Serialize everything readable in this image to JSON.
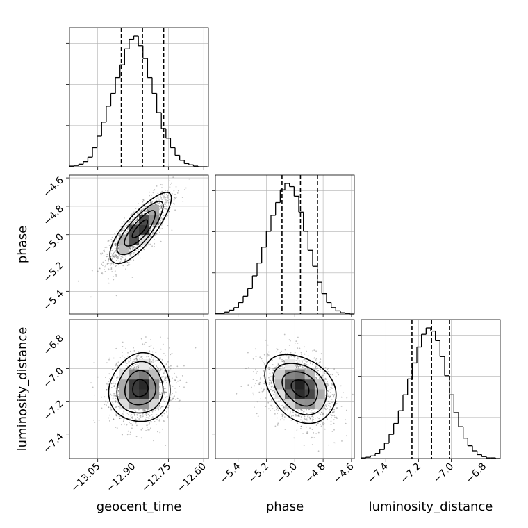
{
  "chart_data": {
    "type": "corner",
    "grid": true,
    "parameters": [
      {
        "name": "geocent_time",
        "label": "geocent_time",
        "range": [
          -13.17,
          -12.58
        ],
        "ticks": [
          -13.05,
          -12.9,
          -12.75,
          -12.6
        ],
        "tick_labels": [
          "−13.05",
          "−12.90",
          "−12.75",
          "−12.60"
        ],
        "quantiles": [
          -12.95,
          -12.86,
          -12.77
        ],
        "histogram": {
          "bin_edges": [
            -13.17,
            -13.1505,
            -13.131,
            -13.1115,
            -13.092,
            -13.0725,
            -13.053,
            -13.0335,
            -13.014,
            -12.9945,
            -12.975,
            -12.9555,
            -12.936,
            -12.9165,
            -12.897,
            -12.8775,
            -12.858,
            -12.8385,
            -12.819,
            -12.7995,
            -12.78,
            -12.7605,
            -12.741,
            -12.7215,
            -12.702,
            -12.6825,
            -12.663,
            -12.6435,
            -12.624,
            -12.6045,
            -12.585
          ],
          "counts": [
            1,
            2,
            4,
            8,
            15,
            30,
            48,
            70,
            95,
            115,
            140,
            160,
            185,
            200,
            205,
            190,
            170,
            140,
            115,
            85,
            60,
            45,
            30,
            18,
            10,
            5,
            3,
            1,
            0,
            0
          ]
        }
      },
      {
        "name": "phase",
        "label": "phase",
        "range": [
          -5.56,
          -4.58
        ],
        "ticks": [
          -5.4,
          -5.2,
          -5.0,
          -4.8,
          -4.6
        ],
        "tick_labels": [
          "−5.4",
          "−5.2",
          "−5.0",
          "−4.8",
          "−4.6"
        ],
        "quantiles": [
          -5.09,
          -4.96,
          -4.84
        ],
        "histogram": {
          "bin_edges": [
            -5.56,
            -5.5273,
            -5.4947,
            -5.462,
            -5.4293,
            -5.3967,
            -5.364,
            -5.3313,
            -5.2987,
            -5.266,
            -5.2333,
            -5.2007,
            -5.168,
            -5.1353,
            -5.1027,
            -5.07,
            -5.0373,
            -5.0047,
            -4.972,
            -4.9393,
            -4.9067,
            -4.874,
            -4.8413,
            -4.8087,
            -4.776,
            -4.7433,
            -4.7107,
            -4.678,
            -4.6453,
            -4.6127,
            -4.58
          ],
          "counts": [
            1,
            1,
            3,
            6,
            10,
            18,
            28,
            40,
            60,
            80,
            105,
            130,
            155,
            175,
            195,
            205,
            200,
            185,
            160,
            130,
            100,
            75,
            50,
            32,
            18,
            10,
            5,
            2,
            1,
            0
          ]
        }
      },
      {
        "name": "luminosity_distance",
        "label": "luminosity_distance",
        "range": [
          -7.55,
          -6.7
        ],
        "ticks": [
          -7.4,
          -7.2,
          -7.0,
          -6.8
        ],
        "tick_labels": [
          "−7.4",
          "−7.2",
          "−7.0",
          "−6.8"
        ],
        "quantiles": [
          -7.24,
          -7.12,
          -7.01
        ],
        "histogram": {
          "bin_edges": [
            -7.55,
            -7.5217,
            -7.4933,
            -7.465,
            -7.4367,
            -7.4083,
            -7.38,
            -7.3517,
            -7.3233,
            -7.295,
            -7.2667,
            -7.2383,
            -7.21,
            -7.1817,
            -7.1533,
            -7.125,
            -7.0967,
            -7.0683,
            -7.04,
            -7.0117,
            -6.9833,
            -6.955,
            -6.9267,
            -6.8983,
            -6.87,
            -6.8417,
            -6.8133,
            -6.785,
            -6.7567,
            -6.7283,
            -6.7
          ],
          "counts": [
            1,
            2,
            4,
            8,
            14,
            24,
            38,
            55,
            75,
            100,
            125,
            150,
            175,
            195,
            205,
            200,
            185,
            160,
            130,
            100,
            72,
            50,
            32,
            20,
            12,
            6,
            3,
            1,
            1,
            0
          ]
        }
      }
    ],
    "pairs": [
      {
        "x": "geocent_time",
        "y": "phase",
        "mean": [
          -12.87,
          -4.96
        ],
        "std": [
          0.065,
          0.125
        ],
        "correlation": 0.8,
        "contour_levels_sigma": [
          0.5,
          1.0,
          1.5,
          2.0
        ]
      },
      {
        "x": "geocent_time",
        "y": "luminosity_distance",
        "mean": [
          -12.87,
          -7.12
        ],
        "std": [
          0.065,
          0.105
        ],
        "correlation": 0.05,
        "contour_levels_sigma": [
          0.5,
          1.0,
          1.5,
          2.0
        ]
      },
      {
        "x": "phase",
        "y": "luminosity_distance",
        "mean": [
          -4.96,
          -7.12
        ],
        "std": [
          0.125,
          0.105
        ],
        "correlation": -0.3,
        "contour_levels_sigma": [
          0.5,
          1.0,
          1.5,
          2.0
        ]
      }
    ]
  }
}
